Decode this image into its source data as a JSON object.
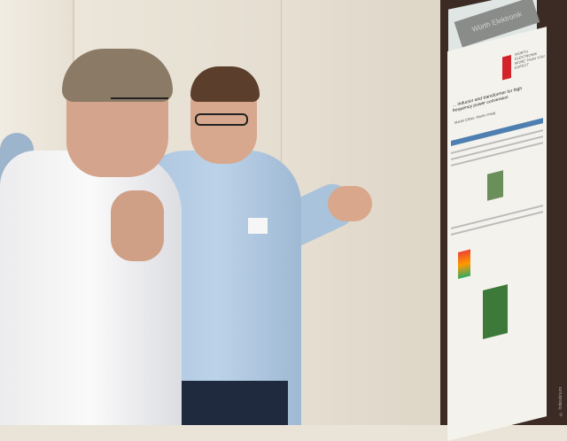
{
  "scene": {
    "description_type": "photo",
    "poster": {
      "sign": "Würth Elektronik",
      "brand": "WÜRTH ELEKTRONIK MORE THAN YOU EXPECT",
      "title": "... inductor and transformer for high frequency power conversion",
      "authors": "Martin Ellner, Martin Haug"
    },
    "watermark": "© Indexkinum",
    "colors": {
      "brand_red": "#d2232a",
      "poster_bar": "#4d7fb0",
      "board": "#3c2b24"
    }
  }
}
